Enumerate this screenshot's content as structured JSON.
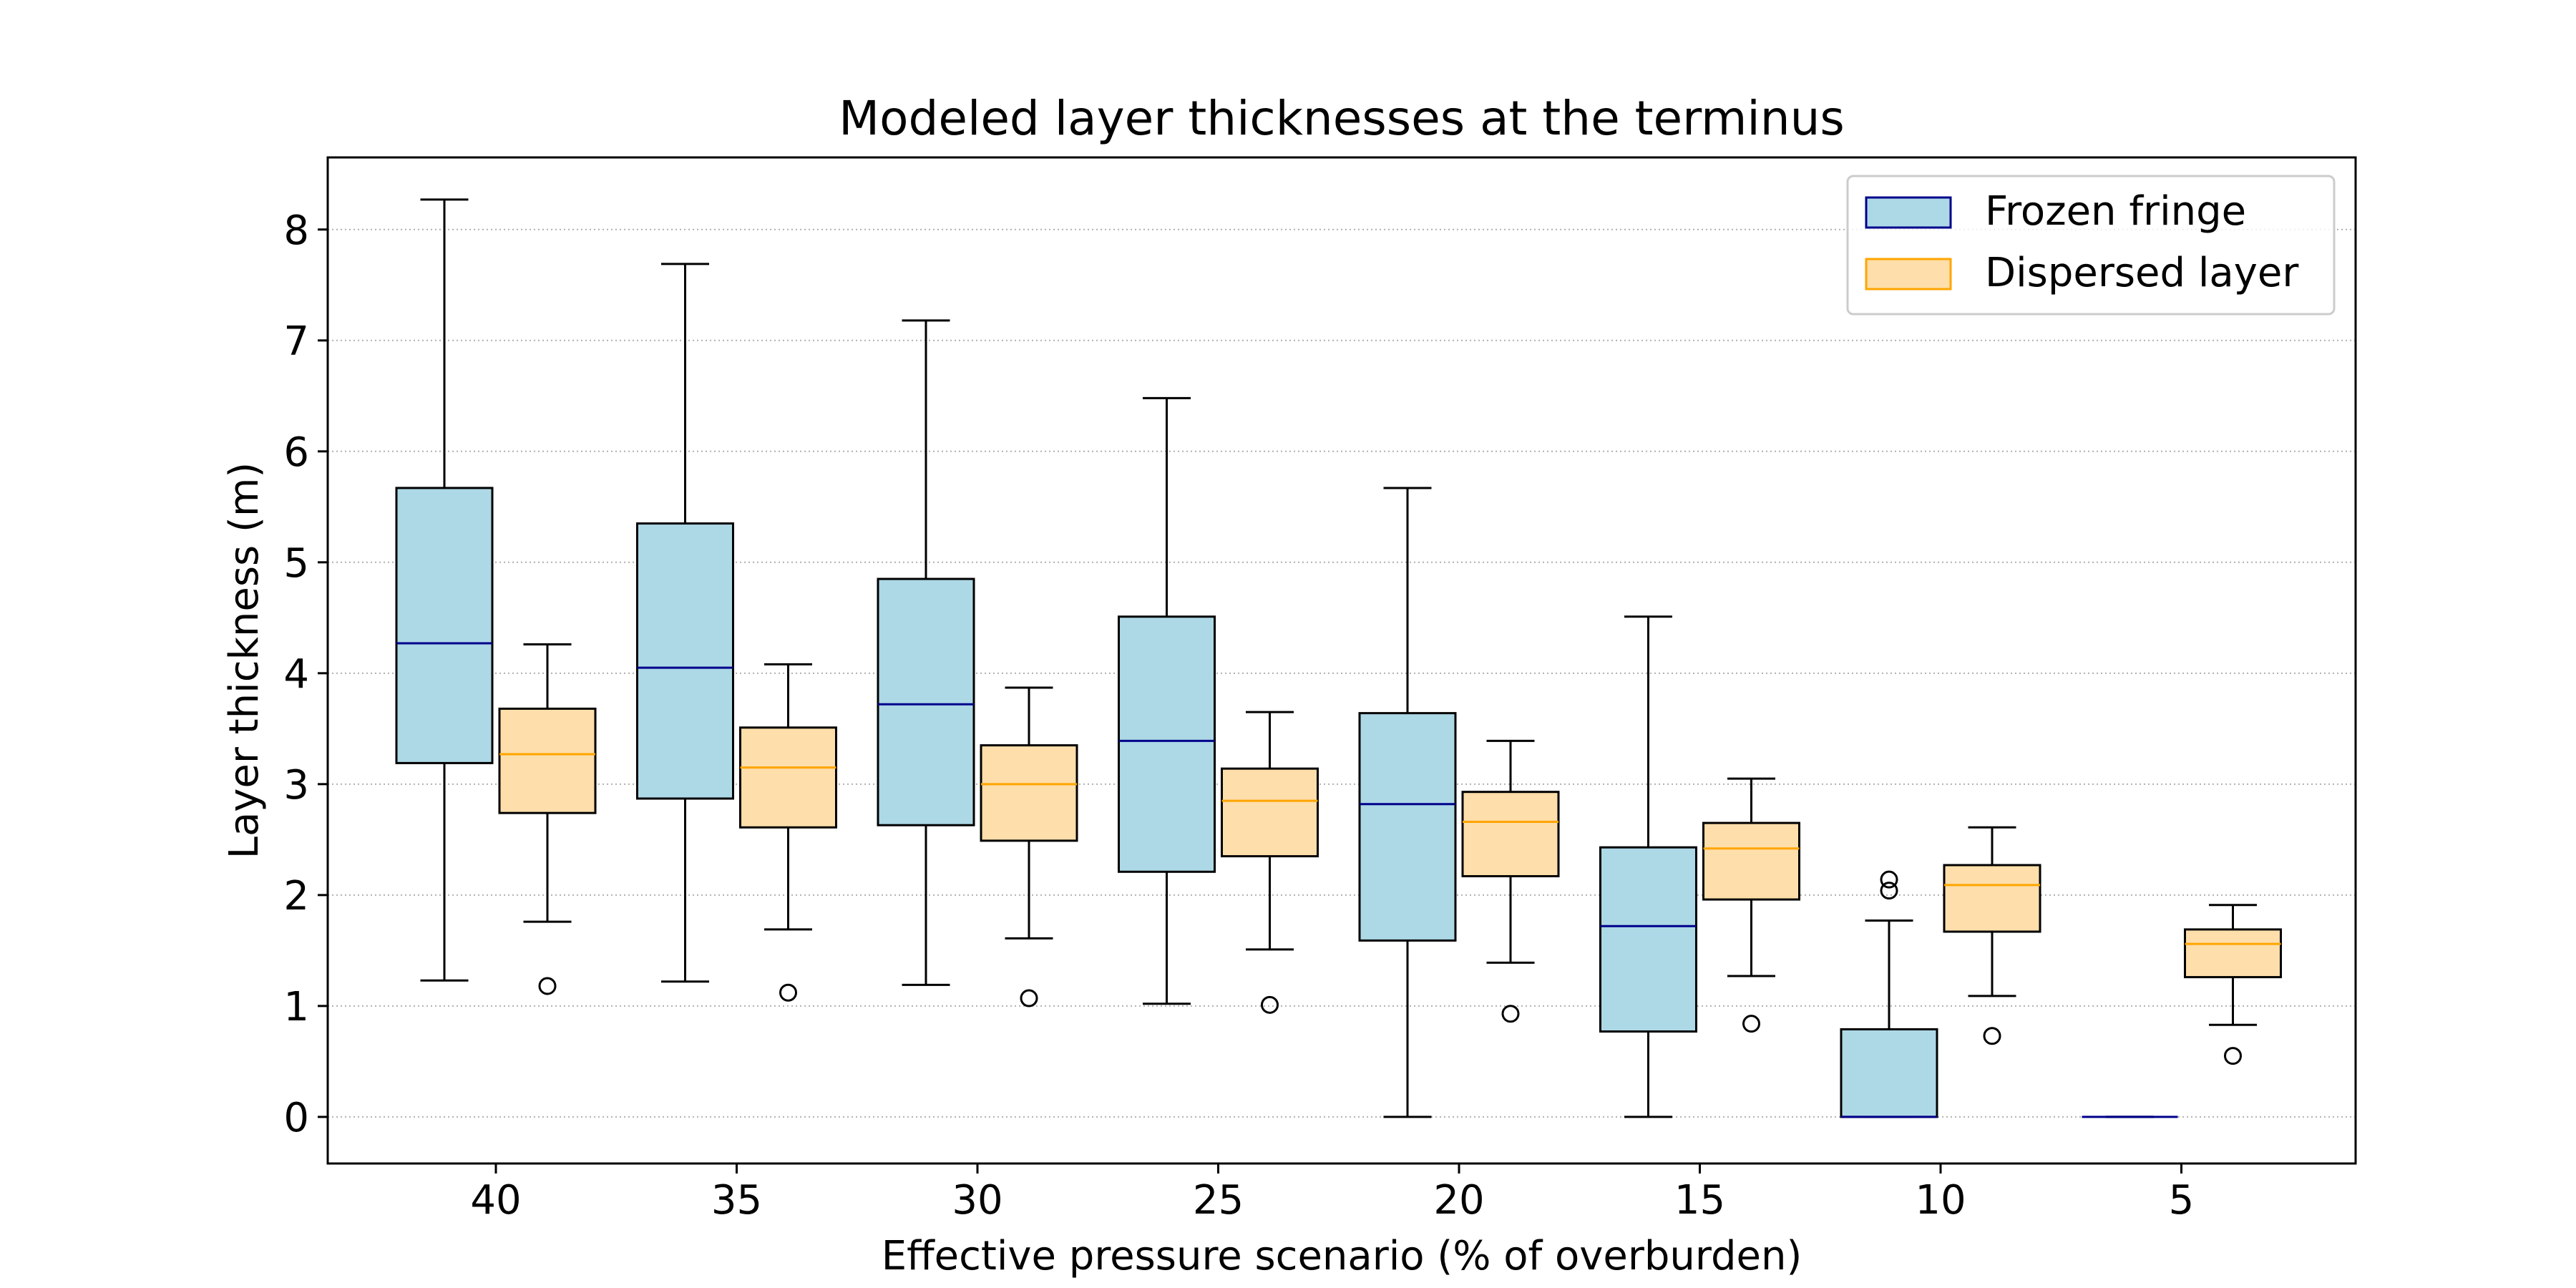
{
  "chart_data": {
    "type": "box",
    "title": "Modeled layer thicknesses at the terminus",
    "xlabel": "Effective pressure scenario (% of overburden)",
    "ylabel": "Layer thickness (m)",
    "categories": [
      "40",
      "35",
      "30",
      "25",
      "20",
      "15",
      "10",
      "5"
    ],
    "ylim": [
      -0.42,
      8.65
    ],
    "yticks": [
      0,
      1,
      2,
      3,
      4,
      5,
      6,
      7,
      8
    ],
    "grid": "y-dotted",
    "legend_position": "top-right",
    "series": [
      {
        "name": "Frozen fringe",
        "fill": "#add8e6",
        "median_color": "#00008b",
        "boxes": [
          {
            "whislo": 1.23,
            "q1": 3.19,
            "med": 4.27,
            "q3": 5.67,
            "whishi": 8.27,
            "fliers": []
          },
          {
            "whislo": 1.22,
            "q1": 2.87,
            "med": 4.05,
            "q3": 5.35,
            "whishi": 7.69,
            "fliers": []
          },
          {
            "whislo": 1.19,
            "q1": 2.63,
            "med": 3.72,
            "q3": 4.85,
            "whishi": 7.18,
            "fliers": []
          },
          {
            "whislo": 1.02,
            "q1": 2.21,
            "med": 3.39,
            "q3": 4.51,
            "whishi": 6.48,
            "fliers": []
          },
          {
            "whislo": 0.0,
            "q1": 1.59,
            "med": 2.82,
            "q3": 3.64,
            "whishi": 5.67,
            "fliers": []
          },
          {
            "whislo": 0.0,
            "q1": 0.77,
            "med": 1.72,
            "q3": 2.43,
            "whishi": 4.51,
            "fliers": []
          },
          {
            "whislo": 0.0,
            "q1": 0.0,
            "med": 0.0,
            "q3": 0.79,
            "whishi": 1.77,
            "fliers": [
              2.04,
              2.14
            ]
          },
          {
            "whislo": 0.0,
            "q1": 0.0,
            "med": 0.0,
            "q3": 0.0,
            "whishi": 0.0,
            "fliers": []
          }
        ]
      },
      {
        "name": "Dispersed layer",
        "fill": "#fedeaa",
        "median_color": "#ffa500",
        "boxes": [
          {
            "whislo": 1.76,
            "q1": 2.74,
            "med": 3.27,
            "q3": 3.68,
            "whishi": 4.26,
            "fliers": [
              1.18
            ]
          },
          {
            "whislo": 1.69,
            "q1": 2.61,
            "med": 3.15,
            "q3": 3.51,
            "whishi": 4.08,
            "fliers": [
              1.12
            ]
          },
          {
            "whislo": 1.61,
            "q1": 2.49,
            "med": 3.0,
            "q3": 3.35,
            "whishi": 3.87,
            "fliers": [
              1.07
            ]
          },
          {
            "whislo": 1.51,
            "q1": 2.35,
            "med": 2.85,
            "q3": 3.14,
            "whishi": 3.65,
            "fliers": [
              1.01
            ]
          },
          {
            "whislo": 1.39,
            "q1": 2.17,
            "med": 2.66,
            "q3": 2.93,
            "whishi": 3.39,
            "fliers": [
              0.93
            ]
          },
          {
            "whislo": 1.27,
            "q1": 1.96,
            "med": 2.42,
            "q3": 2.65,
            "whishi": 3.05,
            "fliers": [
              0.84
            ]
          },
          {
            "whislo": 1.09,
            "q1": 1.67,
            "med": 2.09,
            "q3": 2.27,
            "whishi": 2.61,
            "fliers": [
              0.73
            ]
          },
          {
            "whislo": 0.83,
            "q1": 1.26,
            "med": 1.56,
            "q3": 1.69,
            "whishi": 1.91,
            "fliers": [
              0.55
            ]
          }
        ]
      }
    ]
  }
}
